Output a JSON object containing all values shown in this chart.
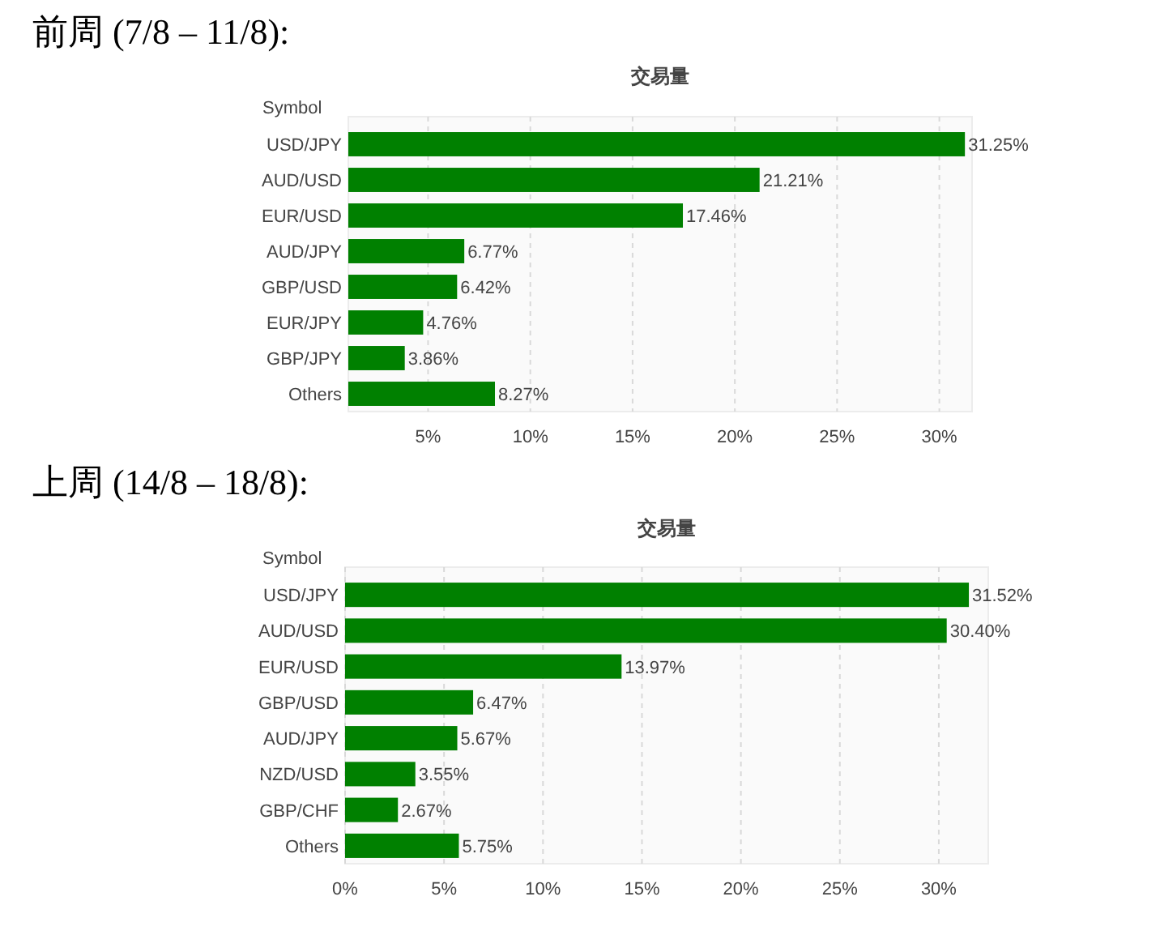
{
  "chart_data": [
    {
      "type": "bar",
      "orientation": "horizontal",
      "title": "前周 (7/8 – 11/8):",
      "subtitle": "交易量",
      "ylabel": "Symbol",
      "categories": [
        "USD/JPY",
        "AUD/USD",
        "EUR/USD",
        "AUD/JPY",
        "GBP/USD",
        "EUR/JPY",
        "GBP/JPY",
        "Others"
      ],
      "values": [
        31.25,
        21.21,
        17.46,
        6.77,
        6.42,
        4.76,
        3.86,
        8.27
      ],
      "value_labels": [
        "31.25%",
        "21.21%",
        "17.46%",
        "6.77%",
        "6.42%",
        "4.76%",
        "3.86%",
        "8.27%"
      ],
      "color": "#008000",
      "xlim": [
        1.1,
        31.6
      ],
      "xticks": [
        {
          "value": 5,
          "label": "5%"
        },
        {
          "value": 10,
          "label": "10%"
        },
        {
          "value": 15,
          "label": "15%"
        },
        {
          "value": 20,
          "label": "20%"
        },
        {
          "value": 25,
          "label": "25%"
        },
        {
          "value": 30,
          "label": "30%"
        }
      ],
      "grid": "x"
    },
    {
      "type": "bar",
      "orientation": "horizontal",
      "title": "上周 (14/8 – 18/8):",
      "subtitle": "交易量",
      "ylabel": "Symbol",
      "categories": [
        "USD/JPY",
        "AUD/USD",
        "EUR/USD",
        "GBP/USD",
        "AUD/JPY",
        "NZD/USD",
        "GBP/CHF",
        "Others"
      ],
      "values": [
        31.52,
        30.4,
        13.97,
        6.47,
        5.67,
        3.55,
        2.67,
        5.75
      ],
      "value_labels": [
        "31.52%",
        "30.40%",
        "13.97%",
        "6.47%",
        "5.67%",
        "3.55%",
        "2.67%",
        "5.75%"
      ],
      "color": "#008000",
      "xlim": [
        0,
        32.5
      ],
      "xticks": [
        {
          "value": 0,
          "label": "0%"
        },
        {
          "value": 5,
          "label": "5%"
        },
        {
          "value": 10,
          "label": "10%"
        },
        {
          "value": 15,
          "label": "15%"
        },
        {
          "value": 20,
          "label": "20%"
        },
        {
          "value": 25,
          "label": "25%"
        },
        {
          "value": 30,
          "label": "30%"
        }
      ],
      "grid": "x"
    }
  ]
}
